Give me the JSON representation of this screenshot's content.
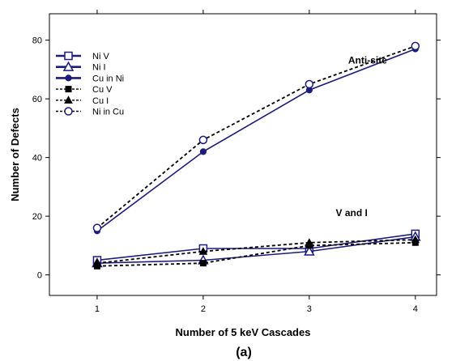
{
  "chart_data": {
    "type": "line",
    "xlabel": "Number of 5 keV Cascades",
    "ylabel": "Number of Defects",
    "panel_label": "(a)",
    "x": [
      1,
      2,
      3,
      4
    ],
    "xticks": [
      1,
      2,
      3,
      4
    ],
    "yticks": [
      0,
      20,
      40,
      60,
      80
    ],
    "xlim": [
      0.55,
      4.2
    ],
    "ylim": [
      -7,
      89
    ],
    "grid": false,
    "legend_position": "top-left",
    "annotations": [
      {
        "text": "Anti-site",
        "x": 3.55,
        "y": 72
      },
      {
        "text": "V and I",
        "x": 3.4,
        "y": 20
      }
    ],
    "series": [
      {
        "name": "Ni V",
        "values": [
          5,
          9,
          9,
          14
        ],
        "color": "#1c1c7a",
        "dash": "solid",
        "marker": "square-open"
      },
      {
        "name": "Ni I",
        "values": [
          4,
          5,
          8,
          13
        ],
        "color": "#1c1c7a",
        "dash": "solid",
        "marker": "triangle-open"
      },
      {
        "name": "Cu in Ni",
        "values": [
          15,
          42,
          63,
          77
        ],
        "color": "#1c1c7a",
        "dash": "solid",
        "marker": "circle-filled"
      },
      {
        "name": "Cu V",
        "values": [
          3,
          4,
          10,
          11
        ],
        "color": "#000000",
        "dash": "dashed",
        "marker": "square-filled"
      },
      {
        "name": "Cu I",
        "values": [
          4,
          8,
          11,
          12
        ],
        "color": "#000000",
        "dash": "dashed",
        "marker": "triangle-filled"
      },
      {
        "name": "Ni in Cu",
        "values": [
          16,
          46,
          65,
          78
        ],
        "color": "#000000",
        "dash": "dashed",
        "marker": "circle-open",
        "marker_color": "#1c1c7a"
      }
    ]
  }
}
